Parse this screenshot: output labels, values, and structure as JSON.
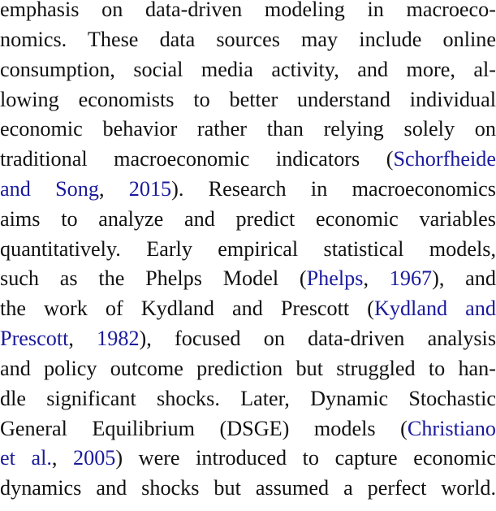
{
  "paragraph": {
    "lines": [
      [
        {
          "t": "emphasis on data-driven modeling in macroeco-"
        }
      ],
      [
        {
          "t": "nomics.  These data sources may include online"
        }
      ],
      [
        {
          "t": "consumption, social media activity, and more, al-"
        }
      ],
      [
        {
          "t": "lowing economists to better understand individual"
        }
      ],
      [
        {
          "t": "economic behavior rather than relying solely on"
        }
      ],
      [
        {
          "t": "traditional macroeconomic indicators ("
        },
        {
          "t": "Schorfheide",
          "c": 1
        }
      ],
      [
        {
          "t": "and Song",
          "c": 1
        },
        {
          "t": ", "
        },
        {
          "t": "2015",
          "c": 1
        },
        {
          "t": ").  Research in macroeconomics"
        }
      ],
      [
        {
          "t": "aims to analyze and predict economic variables"
        }
      ],
      [
        {
          "t": "quantitatively. Early empirical statistical models,"
        }
      ],
      [
        {
          "t": "such as the Phelps Model ("
        },
        {
          "t": "Phelps",
          "c": 1
        },
        {
          "t": ", "
        },
        {
          "t": "1967",
          "c": 1
        },
        {
          "t": "), and"
        }
      ],
      [
        {
          "t": "the work of Kydland and Prescott ("
        },
        {
          "t": "Kydland and",
          "c": 1
        }
      ],
      [
        {
          "t": "Prescott",
          "c": 1
        },
        {
          "t": ", "
        },
        {
          "t": "1982",
          "c": 1
        },
        {
          "t": "), focused on data-driven analysis"
        }
      ],
      [
        {
          "t": "and policy outcome prediction but struggled to han-"
        }
      ],
      [
        {
          "t": "dle significant shocks. Later, Dynamic Stochastic"
        }
      ],
      [
        {
          "t": "General Equilibrium (DSGE) models ("
        },
        {
          "t": "Christiano",
          "c": 1
        }
      ],
      [
        {
          "t": "et al.",
          "c": 1
        },
        {
          "t": ", "
        },
        {
          "t": "2005",
          "c": 1
        },
        {
          "t": ") were introduced to capture economic"
        }
      ],
      [
        {
          "t": "dynamics and shocks but assumed a perfect world."
        }
      ]
    ]
  }
}
